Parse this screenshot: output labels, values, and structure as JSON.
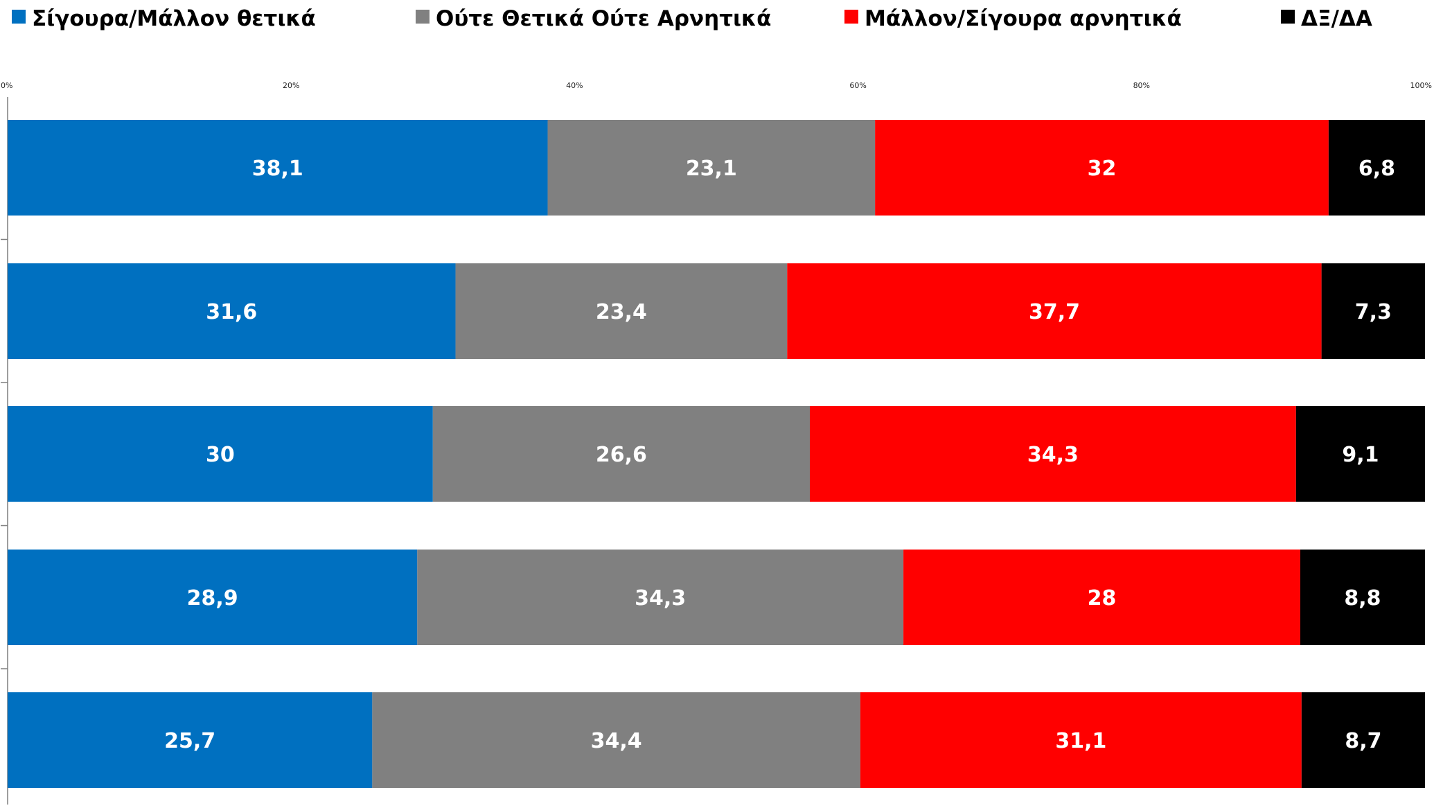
{
  "chart_data": {
    "type": "bar",
    "orientation": "horizontal",
    "stacked": "percent",
    "legend": "top",
    "grid": false,
    "xlim": [
      0,
      100
    ],
    "x_ticks": [
      "0%",
      "20%",
      "40%",
      "60%",
      "80%",
      "100%"
    ],
    "x_tick_values": [
      0,
      20,
      40,
      60,
      80,
      100
    ],
    "categories": [
      "",
      "",
      "",
      "",
      ""
    ],
    "series": [
      {
        "name": "Σίγουρα/Μάλλον θετικά",
        "color": "#0070C0",
        "labels": [
          "38,1",
          "31,6",
          "30",
          "28,9",
          "25,7"
        ],
        "values": [
          38.1,
          31.6,
          30,
          28.9,
          25.7
        ]
      },
      {
        "name": "Ούτε Θετικά Ούτε Αρνητικά",
        "color": "#808080",
        "labels": [
          "23,1",
          "23,4",
          "26,6",
          "34,3",
          "34,4"
        ],
        "values": [
          23.1,
          23.4,
          26.6,
          34.3,
          34.4
        ]
      },
      {
        "name": "Μάλλον/Σίγουρα αρνητικά",
        "color": "#FF0000",
        "labels": [
          "32",
          "37,7",
          "34,3",
          "28",
          "31,1"
        ],
        "values": [
          32,
          37.7,
          34.3,
          28,
          31.1
        ]
      },
      {
        "name": "ΔΞ/ΔΑ",
        "color": "#000000",
        "labels": [
          "6,8",
          "7,3",
          "9,1",
          "8,8",
          "8,7"
        ],
        "values": [
          6.8,
          7.3,
          9.1,
          8.8,
          8.7
        ]
      }
    ]
  }
}
